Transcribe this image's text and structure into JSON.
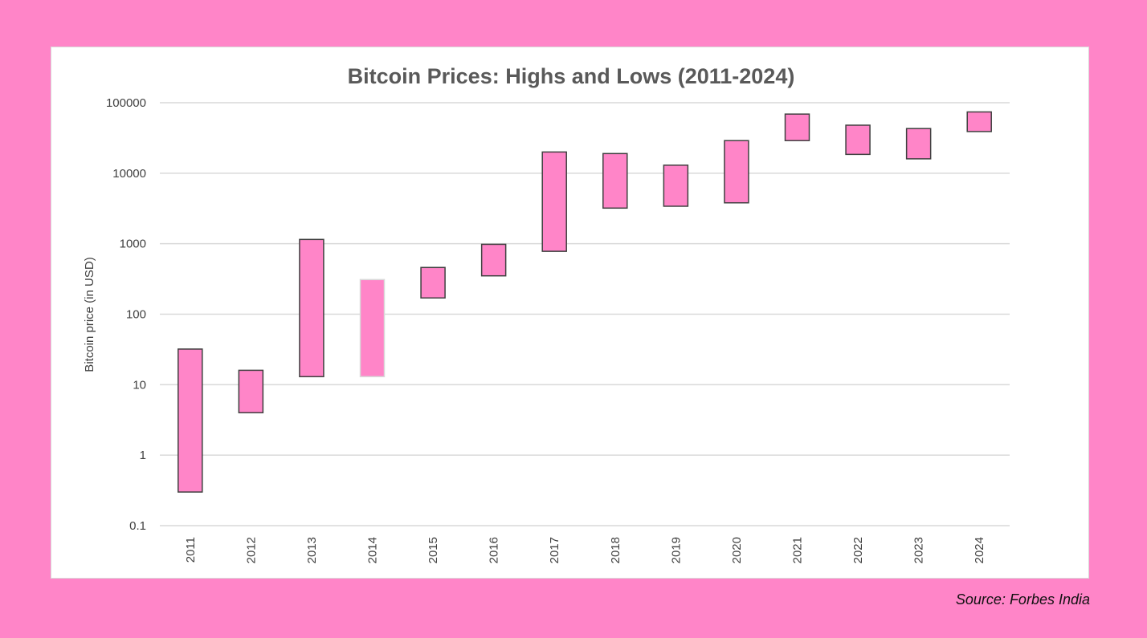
{
  "source_note": "Source: Forbes India",
  "colors": {
    "background": "#ff85c8",
    "bar_fill": "#ff85c8",
    "bar_stroke": "#404040",
    "bar_stroke_light": "#d9d9d9",
    "grid": "#d9d9d9"
  },
  "chart_data": {
    "type": "bar",
    "subtype": "floating-range",
    "title": "Bitcoin Prices: Highs and Lows (2011-2024)",
    "ylabel": "Bitcoin price (in USD)",
    "xlabel": "",
    "y_scale": "log",
    "ylim": [
      0.1,
      100000
    ],
    "y_ticks": [
      "0.1",
      "1",
      "10",
      "100",
      "1000",
      "10000",
      "100000"
    ],
    "grid": true,
    "categories": [
      "2011",
      "2012",
      "2013",
      "2014",
      "2015",
      "2016",
      "2017",
      "2018",
      "2019",
      "2020",
      "2021",
      "2022",
      "2023",
      "2024"
    ],
    "series": [
      {
        "lows": [
          0.3,
          4,
          13,
          13,
          170,
          350,
          780,
          3200,
          3400,
          3800,
          29000,
          18500,
          16000,
          39000
        ],
        "highs": [
          32,
          16,
          1150,
          310,
          460,
          980,
          20000,
          19000,
          13000,
          29000,
          69000,
          48000,
          43000,
          74000
        ]
      }
    ],
    "highlighted_category": "2014"
  }
}
